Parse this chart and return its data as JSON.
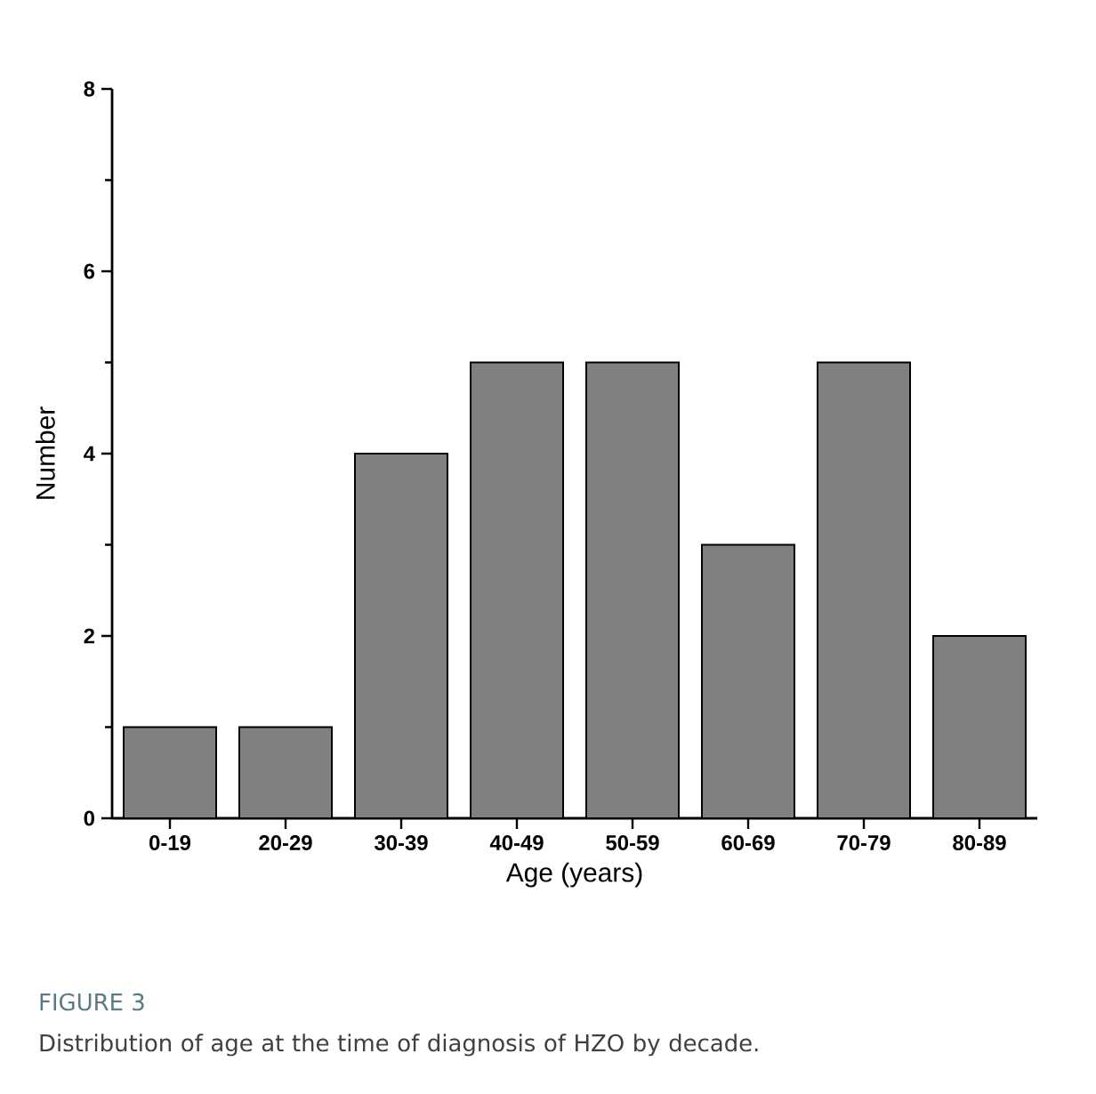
{
  "chart_data": {
    "type": "bar",
    "xlabel": "Age (years)",
    "ylabel": "Number",
    "categories": [
      "0-19",
      "20-29",
      "30-39",
      "40-49",
      "50-59",
      "60-69",
      "70-79",
      "80-89"
    ],
    "values": [
      1,
      1,
      4,
      5,
      5,
      3,
      5,
      2
    ],
    "color": "#808080",
    "ylim": [
      0,
      8
    ],
    "yticks": [
      0,
      2,
      4,
      6,
      8
    ],
    "grid": false,
    "annotations": [
      "FIGURE 3",
      "Distribution of age at the time of diagnosis of HZO by decade."
    ]
  }
}
